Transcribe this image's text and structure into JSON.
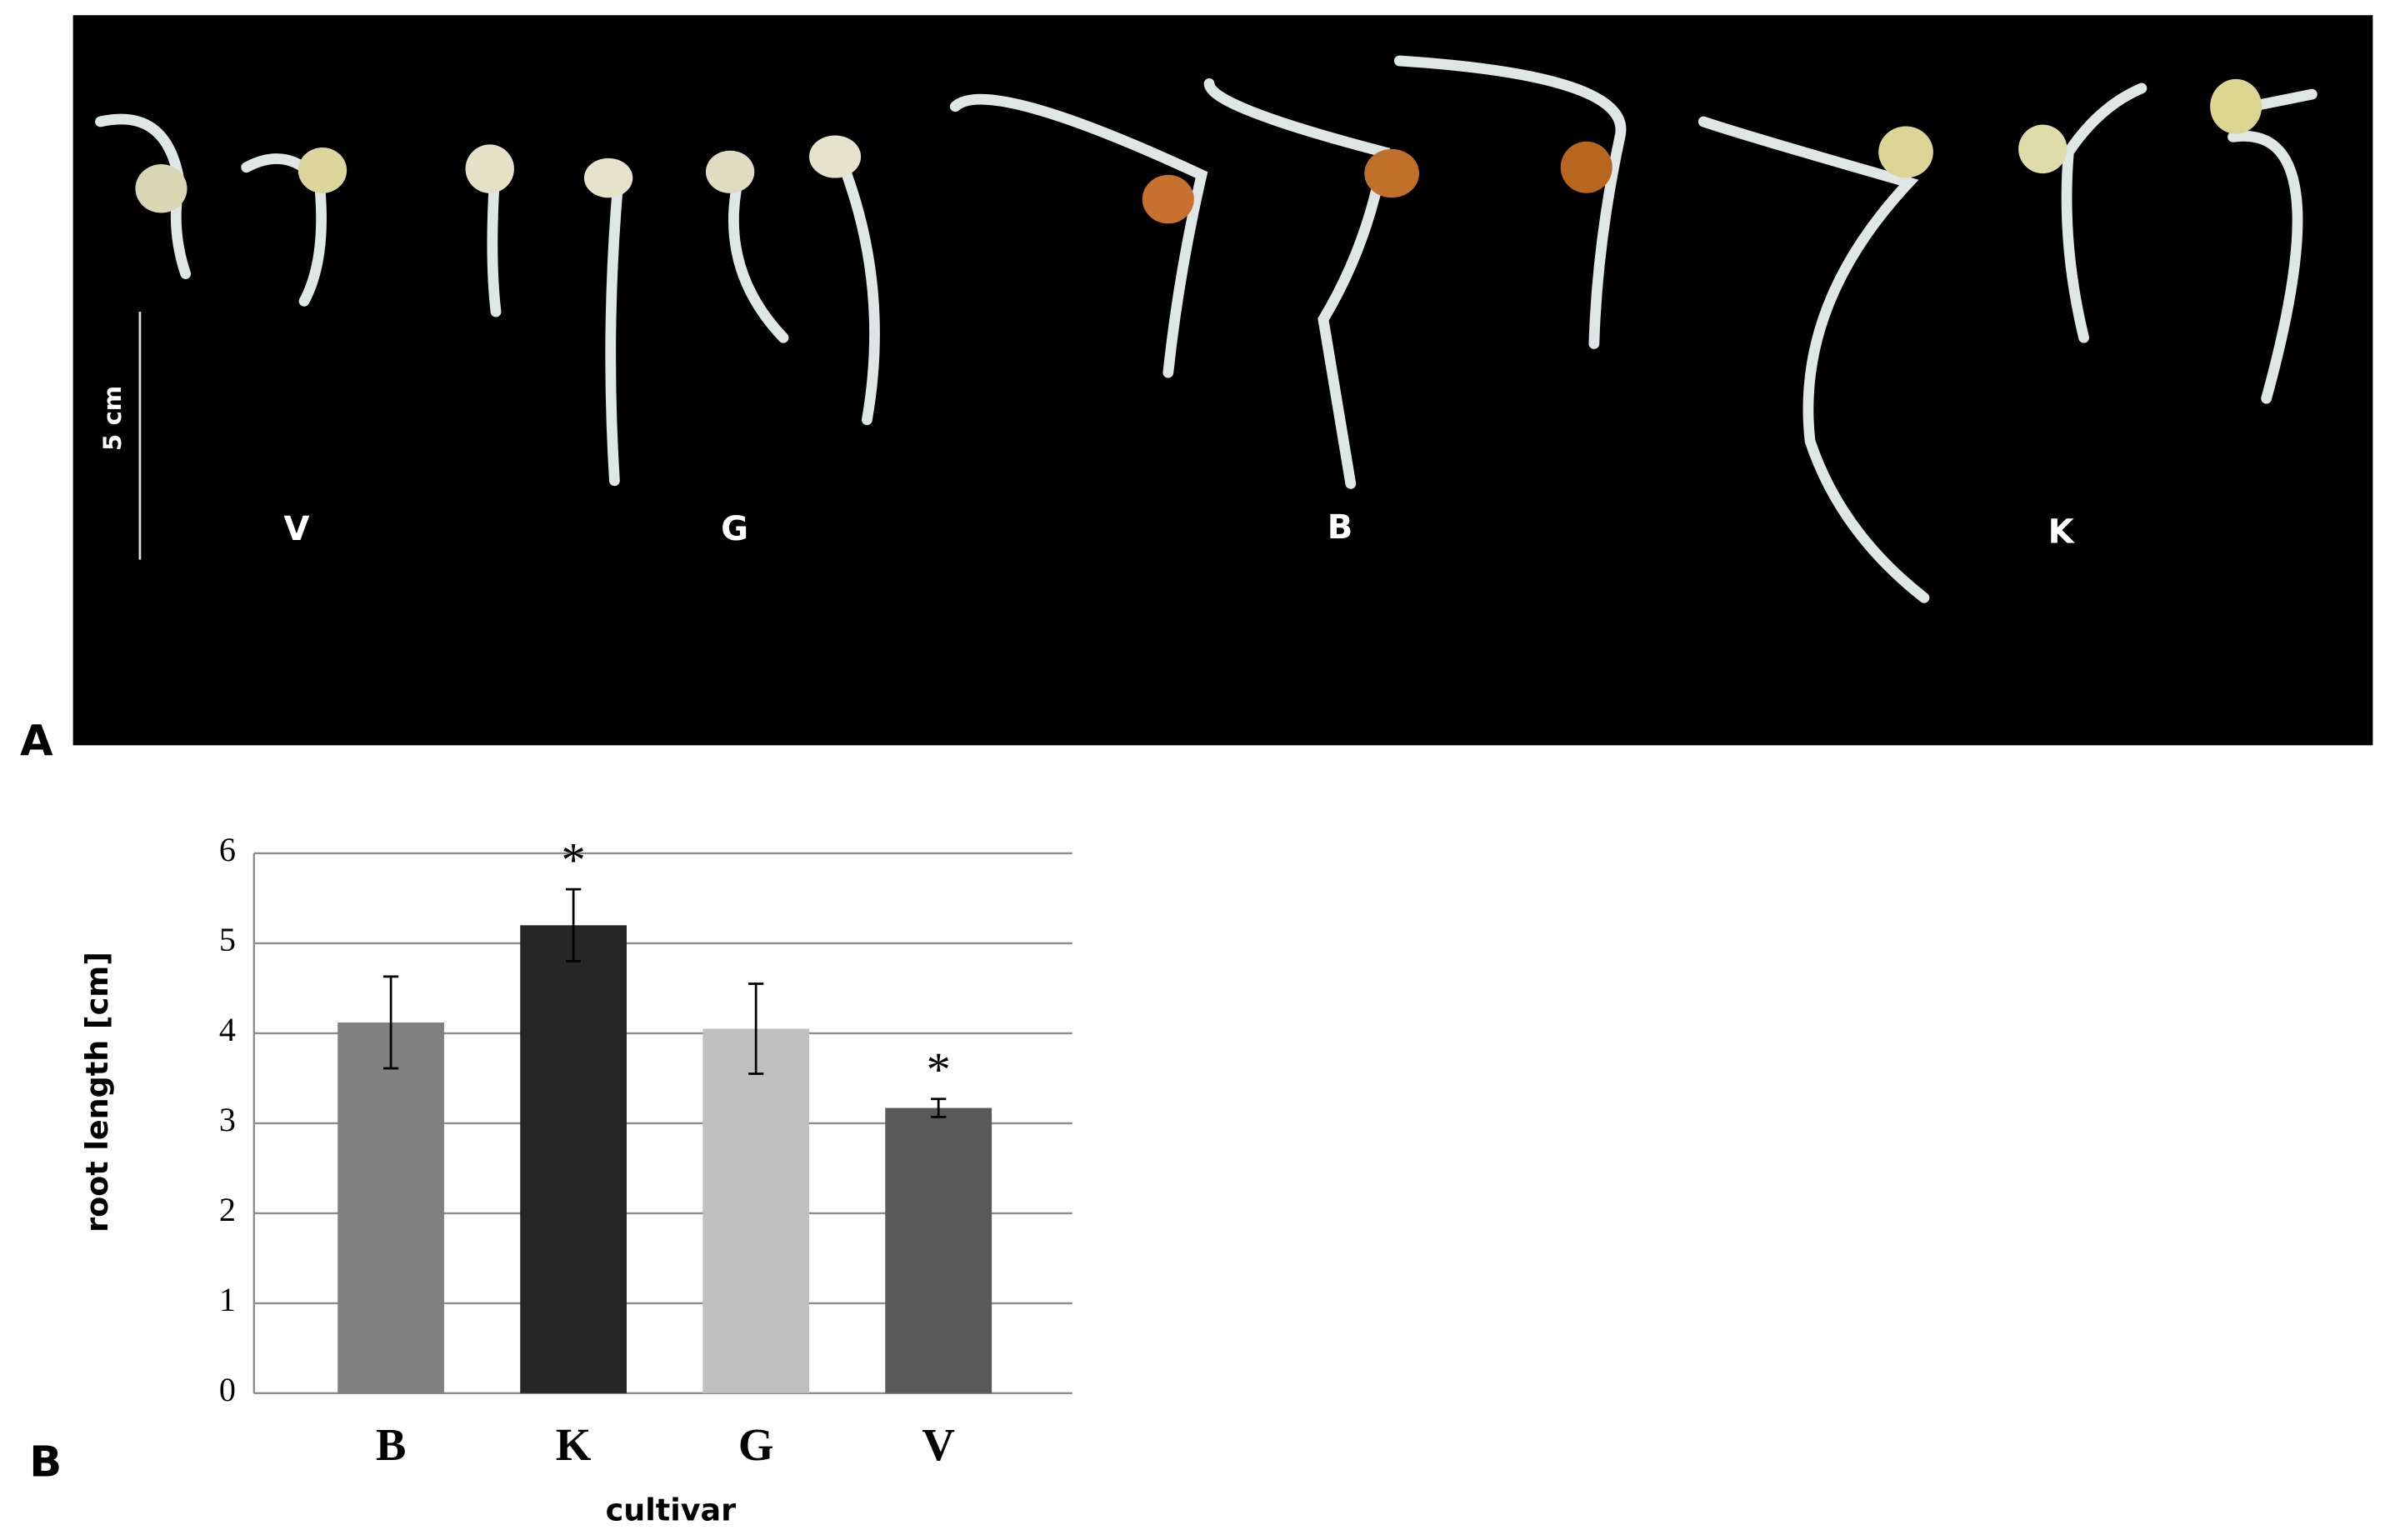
{
  "photo": {
    "panel_label": "A",
    "scale_label": "5 cm",
    "labels": [
      "V",
      "G",
      "B",
      "K"
    ]
  },
  "chart_data": {
    "type": "bar",
    "panel_label": "B",
    "x_label": "cultivar",
    "y_label": "root length [cm]",
    "categories": [
      "B",
      "K",
      "G",
      "V"
    ],
    "values": [
      4.12,
      5.2,
      4.05,
      3.17
    ],
    "errors": [
      0.51,
      0.4,
      0.5,
      0.1
    ],
    "colors": [
      "#808080",
      "#262626",
      "#bfbfbf",
      "#595959"
    ],
    "significance": [
      null,
      "*",
      null,
      "*"
    ],
    "ylim": [
      0,
      6
    ],
    "yticks": [
      0,
      1,
      2,
      3,
      4,
      5,
      6
    ],
    "grid": true
  }
}
